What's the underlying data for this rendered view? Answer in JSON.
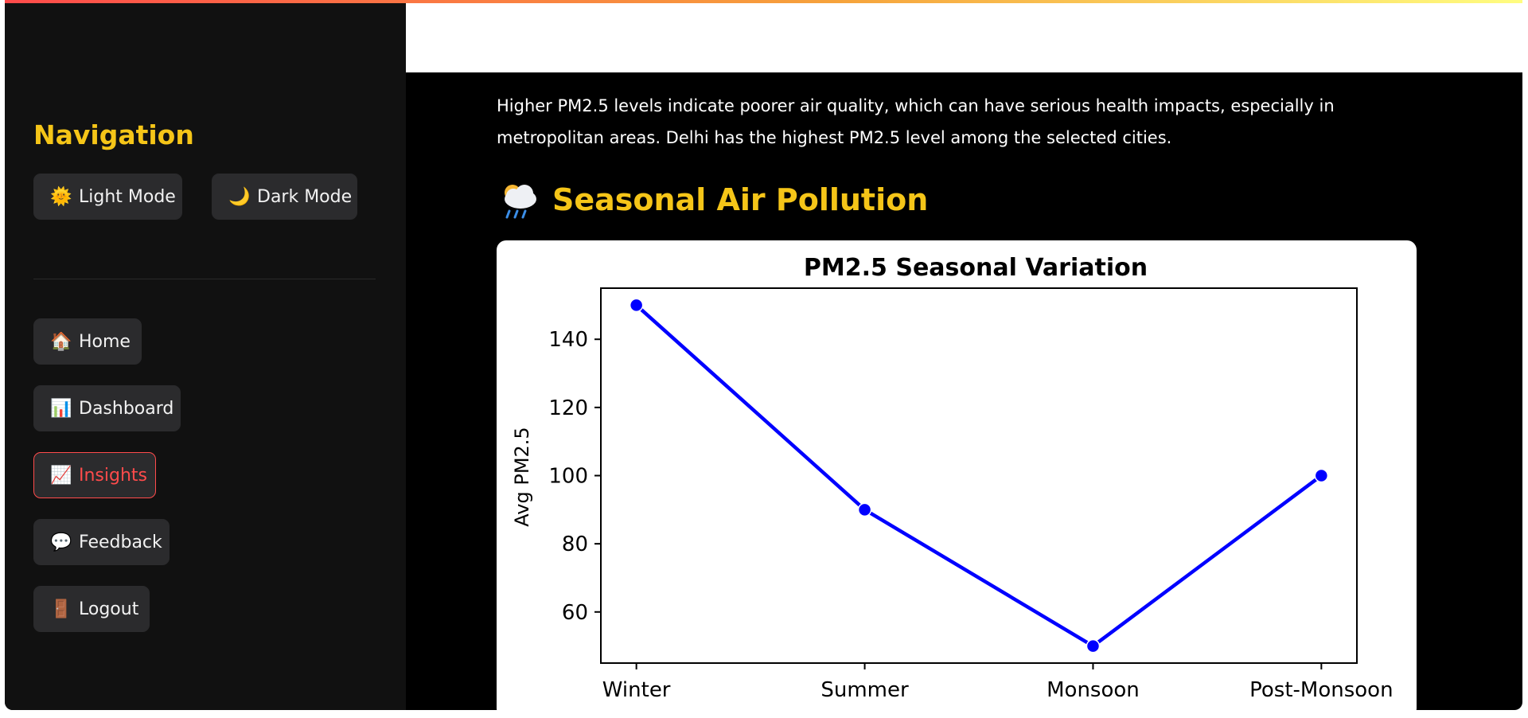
{
  "sidebar": {
    "title": "Navigation",
    "theme_buttons": [
      {
        "icon": "🌞",
        "label": "Light Mode"
      },
      {
        "icon": "🌙",
        "label": "Dark Mode"
      }
    ],
    "nav_items": [
      {
        "icon": "🏠",
        "label": "Home"
      },
      {
        "icon": "📊",
        "label": "Dashboard"
      },
      {
        "icon": "📈",
        "label": "Insights",
        "active": true
      },
      {
        "icon": "💬",
        "label": "Feedback"
      },
      {
        "icon": "🚪",
        "label": "Logout"
      }
    ]
  },
  "main": {
    "intro_text": "Higher PM2.5 levels indicate poorer air quality, which can have serious health impacts, especially in metropolitan areas. Delhi has the highest PM2.5 level among the selected cities.",
    "section_icon": "cloud-rain-icon",
    "section_title": "Seasonal Air Pollution"
  },
  "colors": {
    "accent": "#f5c518",
    "active": "#ff4b4b",
    "line": "#0000ff"
  },
  "chart_data": {
    "type": "line",
    "title": "PM2.5 Seasonal Variation",
    "xlabel": "",
    "ylabel": "Avg PM2.5",
    "categories": [
      "Winter",
      "Summer",
      "Monsoon",
      "Post-Monsoon"
    ],
    "values": [
      150,
      90,
      50,
      100
    ],
    "yticks": [
      60,
      80,
      100,
      120,
      140
    ],
    "ylim": [
      45,
      155
    ],
    "grid": false,
    "markers": true,
    "color": "#0000ff"
  }
}
